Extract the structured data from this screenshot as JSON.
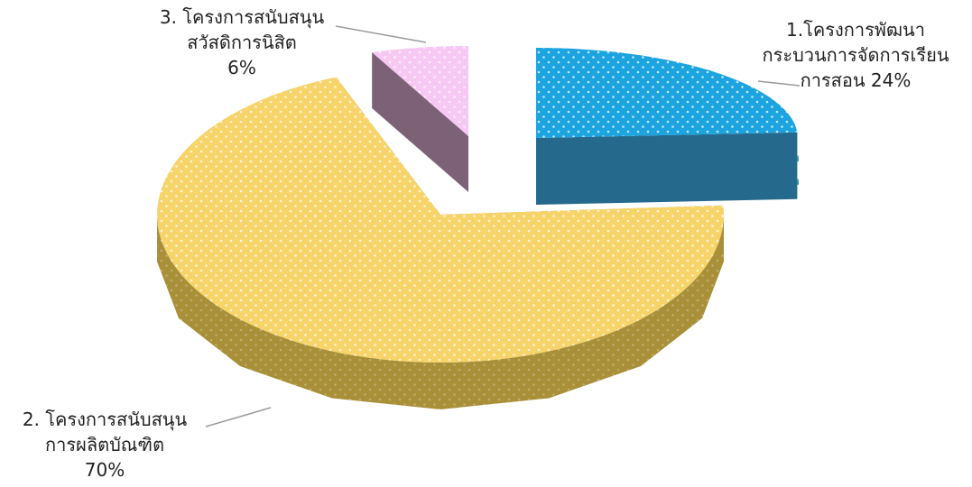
{
  "chart_data": {
    "type": "pie",
    "style": "3d-exploded",
    "title": "",
    "slices": [
      {
        "label_lines": [
          "1.โครงการพัฒนา",
          "กระบวนการจัดการเรียน",
          "การสอน 24%"
        ],
        "name": "1.โครงการพัฒนากระบวนการจัดการเรียนการสอน",
        "value": 24,
        "color": "#1ca4e0",
        "side_color": "#0d5a80"
      },
      {
        "label_lines": [
          "2. โครงการสนับสนุน",
          "การผลิตบัณฑิต",
          "70%"
        ],
        "name": "2. โครงการสนับสนุนการผลิตบัณฑิต",
        "value": 70,
        "color": "#f6d46a",
        "side_color": "#a88f38"
      },
      {
        "label_lines": [
          "3. โครงการสนับสนุน",
          "สวัสดิการนิสิต",
          "6%"
        ],
        "name": "3. โครงการสนับสนุนสวัสดิการนิสิต",
        "value": 6,
        "color": "#f7c8f3",
        "side_color": "#6e5068"
      }
    ]
  }
}
